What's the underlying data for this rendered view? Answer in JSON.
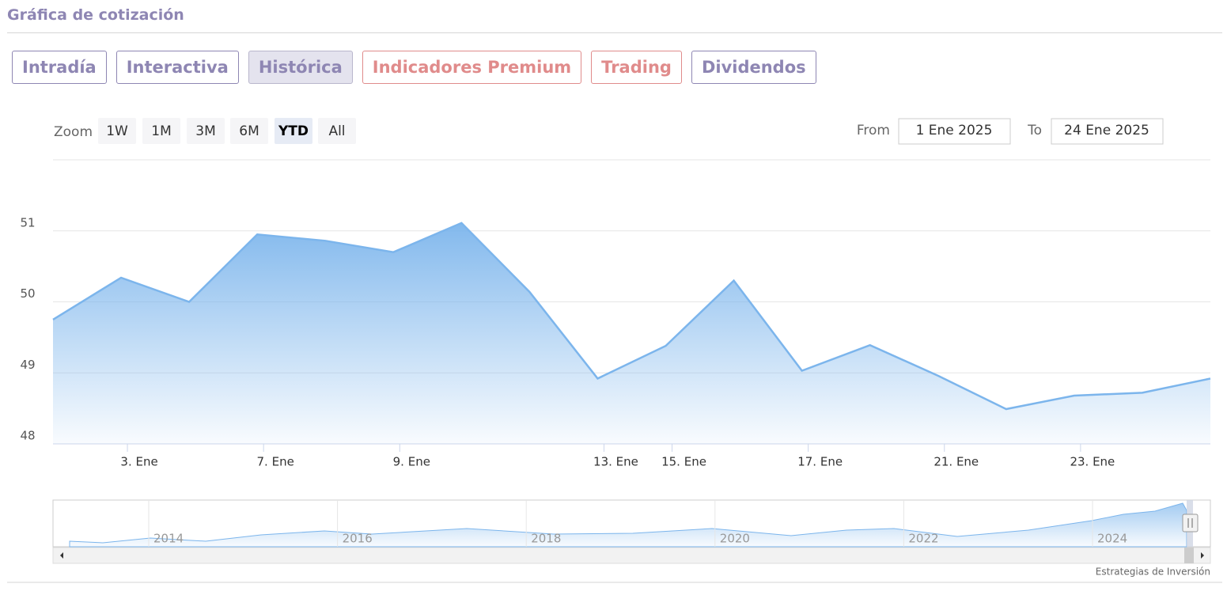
{
  "header": {
    "title": "Gráfica de cotización"
  },
  "tabs": [
    {
      "label": "Intradía",
      "color": "#8e86b3"
    },
    {
      "label": "Interactiva",
      "color": "#8e86b3"
    },
    {
      "label": "Histórica",
      "color": "#8e86b3"
    },
    {
      "label": "Indicadores Premium",
      "color": "#e08b8b"
    },
    {
      "label": "Trading",
      "color": "#e08b8b"
    },
    {
      "label": "Dividendos",
      "color": "#8e86b3"
    }
  ],
  "active_tab": 2,
  "zoom": {
    "label": "Zoom",
    "buttons": [
      "1W",
      "1M",
      "3M",
      "6M",
      "YTD",
      "All"
    ],
    "selected": 4
  },
  "range": {
    "from_label": "From",
    "from": "1 Ene 2025",
    "to_label": "To",
    "to": "24 Ene 2025"
  },
  "chart_data": {
    "type": "area",
    "categories": [
      null,
      "3. Ene",
      null,
      "7. Ene",
      null,
      "9. Ene",
      null,
      null,
      "13. Ene",
      "15. Ene",
      null,
      "17. Ene",
      null,
      "21. Ene",
      null,
      "23. Ene",
      null,
      null
    ],
    "series": [
      {
        "color": "#7cb5ec",
        "values": [
          49.75,
          50.34,
          50.0,
          50.95,
          50.86,
          50.7,
          51.11,
          50.14,
          48.92,
          49.38,
          50.3,
          49.03,
          49.39,
          48.96,
          48.49,
          48.68,
          48.72,
          48.92
        ]
      }
    ],
    "ylim": [
      48,
      52
    ],
    "yticks": [
      48,
      49,
      50,
      51
    ],
    "grid": true
  },
  "navigator": {
    "labels": [
      "2014",
      "2016",
      "2018",
      "2020",
      "2022",
      "2024"
    ]
  },
  "credit": "Estrategias de Inversión"
}
